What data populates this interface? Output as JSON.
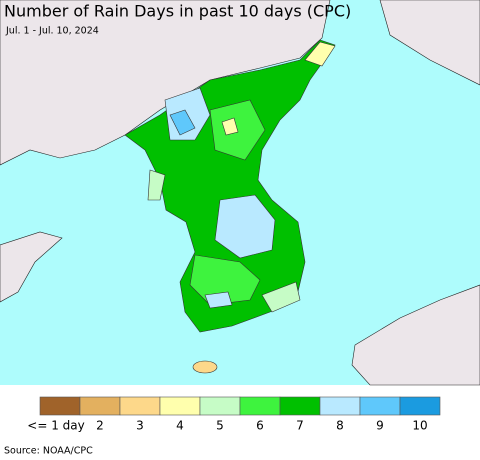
{
  "header": {
    "title": "Number of Rain Days in past 10 days (CPC)",
    "subtitle": "Jul. 1 - Jul. 10, 2024"
  },
  "legend": {
    "items": [
      {
        "label": "<= 1 day",
        "color": "#a0632a"
      },
      {
        "label": "2",
        "color": "#e3b05f"
      },
      {
        "label": "3",
        "color": "#fdd88a"
      },
      {
        "label": "4",
        "color": "#ffffad"
      },
      {
        "label": "5",
        "color": "#c6fcc6"
      },
      {
        "label": "6",
        "color": "#3ef33e"
      },
      {
        "label": "7",
        "color": "#00c000"
      },
      {
        "label": "8",
        "color": "#b9e9ff"
      },
      {
        "label": "9",
        "color": "#5fc8fb"
      },
      {
        "label": "10",
        "color": "#1b9be0"
      }
    ]
  },
  "source": "Source: NOAA/CPC"
}
